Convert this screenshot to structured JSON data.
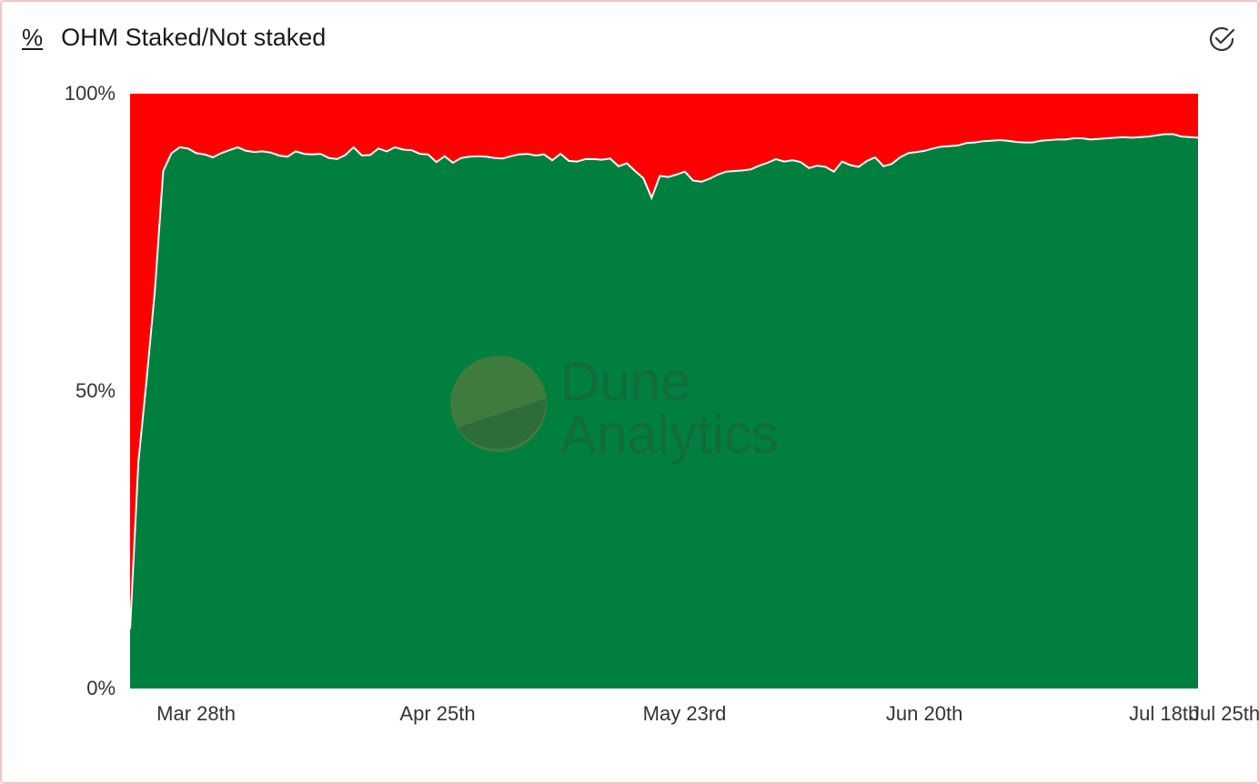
{
  "header": {
    "unit_icon": "%",
    "title": "OHM Staked/Not staked",
    "action_icon": "check-circle-icon"
  },
  "watermark": {
    "line1": "Dune",
    "line2": "Analytics"
  },
  "colors": {
    "staked": "#007f3f",
    "not_staked": "#ff0000",
    "series_line": "#ffffff"
  },
  "chart_data": {
    "type": "area",
    "stacked": "percent",
    "title": "OHM Staked/Not staked",
    "x_start": "2021-03-24",
    "x_end": "2021-07-25",
    "x_ticks": [
      {
        "date": "2021-03-28",
        "label": "Mar 28th"
      },
      {
        "date": "2021-04-25",
        "label": "Apr 25th"
      },
      {
        "date": "2021-05-23",
        "label": "May 23rd"
      },
      {
        "date": "2021-06-20",
        "label": "Jun 20th"
      },
      {
        "date": "2021-07-18",
        "label": "Jul 18th"
      },
      {
        "date": "2021-07-25",
        "label": "Jul 25th"
      }
    ],
    "y_ticks": [
      "0%",
      "50%",
      "100%"
    ],
    "ylim": [
      0,
      100
    ],
    "grid": false,
    "legend": "none",
    "series": [
      {
        "name": "Staked",
        "values": [
          10,
          38,
          52,
          67,
          87,
          90,
          91,
          90.8,
          90,
          89.8,
          89.3,
          90,
          90.5,
          91,
          90.4,
          90.2,
          90.3,
          90.1,
          89.6,
          89.4,
          90.3,
          89.9,
          89.8,
          89.9,
          89.2,
          89,
          89.7,
          91,
          89.6,
          89.7,
          90.8,
          90.3,
          91,
          90.6,
          90.5,
          89.9,
          89.8,
          88.5,
          89.5,
          88.4,
          89.2,
          89.4,
          89.5,
          89.4,
          89.2,
          89.1,
          89.5,
          89.8,
          89.9,
          89.6,
          89.8,
          88.8,
          89.9,
          88.7,
          88.6,
          89,
          89,
          88.9,
          89.1,
          87.8,
          88.3,
          87,
          85.8,
          82.5,
          86.2,
          86,
          86.4,
          86.9,
          85.4,
          85.2,
          85.7,
          86.4,
          86.9,
          87,
          87.1,
          87.3,
          87.9,
          88.4,
          89,
          88.6,
          88.8,
          88.5,
          87.5,
          87.9,
          87.7,
          86.9,
          88.6,
          88,
          87.7,
          88.7,
          89.3,
          87.8,
          88.2,
          89.3,
          90,
          90.2,
          90.4,
          90.8,
          91.1,
          91.2,
          91.3,
          91.7,
          91.8,
          92,
          92.1,
          92.2,
          92.1,
          91.9,
          91.8,
          91.8,
          92.1,
          92.2,
          92.3,
          92.3,
          92.5,
          92.5,
          92.3,
          92.4,
          92.5,
          92.6,
          92.7,
          92.6,
          92.7,
          92.8,
          93,
          93.2,
          93.2,
          92.8,
          92.7,
          92.6
        ]
      },
      {
        "name": "Not staked",
        "values": "remainder to 100%"
      }
    ]
  }
}
